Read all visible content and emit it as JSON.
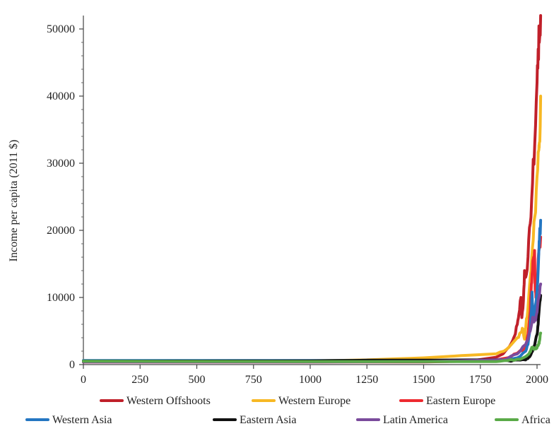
{
  "chart_data": {
    "type": "line",
    "title": "",
    "xlabel": "",
    "ylabel": "Income per capita (2011 $)",
    "xlim": [
      0,
      2000
    ],
    "ylim": [
      0,
      52000
    ],
    "x_ticks": [
      "0",
      "250",
      "500",
      "750",
      "1000",
      "1250",
      "1500",
      "1750",
      "2000"
    ],
    "y_ticks": [
      "0",
      "10000",
      "20000",
      "30000",
      "40000",
      "50000"
    ],
    "grid": false,
    "legend_position": "bottom",
    "series": [
      {
        "name": "Western Offshoots",
        "color": "#c0202a",
        "points": [
          [
            0,
            400
          ],
          [
            1000,
            400
          ],
          [
            1500,
            400
          ],
          [
            1700,
            500
          ],
          [
            1820,
            1100
          ],
          [
            1850,
            1600
          ],
          [
            1870,
            2400
          ],
          [
            1890,
            3400
          ],
          [
            1900,
            4200
          ],
          [
            1913,
            6000
          ],
          [
            1920,
            7500
          ],
          [
            1929,
            10000
          ],
          [
            1933,
            7000
          ],
          [
            1940,
            9500
          ],
          [
            1945,
            14000
          ],
          [
            1950,
            13000
          ],
          [
            1960,
            16000
          ],
          [
            1970,
            21000
          ],
          [
            1980,
            27000
          ],
          [
            1990,
            33000
          ],
          [
            2000,
            42000
          ],
          [
            2005,
            47000
          ],
          [
            2010,
            48000
          ],
          [
            2016,
            52000
          ]
        ]
      },
      {
        "name": "Western Europe",
        "color": "#f7b824",
        "points": [
          [
            0,
            600
          ],
          [
            500,
            550
          ],
          [
            1000,
            550
          ],
          [
            1250,
            700
          ],
          [
            1500,
            1000
          ],
          [
            1600,
            1200
          ],
          [
            1700,
            1400
          ],
          [
            1820,
            1600
          ],
          [
            1870,
            2400
          ],
          [
            1913,
            4000
          ],
          [
            1929,
            4800
          ],
          [
            1938,
            5300
          ],
          [
            1945,
            3800
          ],
          [
            1950,
            5400
          ],
          [
            1960,
            8500
          ],
          [
            1970,
            13000
          ],
          [
            1980,
            17500
          ],
          [
            1990,
            22000
          ],
          [
            2000,
            28000
          ],
          [
            2008,
            32000
          ],
          [
            2010,
            33000
          ],
          [
            2016,
            40000
          ]
        ]
      },
      {
        "name": "Eastern Europe",
        "color": "#ee2a30",
        "points": [
          [
            0,
            400
          ],
          [
            1000,
            400
          ],
          [
            1500,
            500
          ],
          [
            1700,
            600
          ],
          [
            1820,
            700
          ],
          [
            1870,
            1000
          ],
          [
            1913,
            1700
          ],
          [
            1950,
            2500
          ],
          [
            1960,
            4500
          ],
          [
            1970,
            8000
          ],
          [
            1975,
            12000
          ],
          [
            1980,
            14000
          ],
          [
            1985,
            16000
          ],
          [
            1989,
            17000
          ],
          [
            1992,
            11000
          ],
          [
            1995,
            10000
          ],
          [
            2000,
            12000
          ],
          [
            2008,
            17000
          ],
          [
            2016,
            19000
          ]
        ]
      },
      {
        "name": "Western Asia",
        "color": "#2476c2",
        "points": [
          [
            0,
            600
          ],
          [
            1000,
            600
          ],
          [
            1500,
            600
          ],
          [
            1820,
            700
          ],
          [
            1913,
            1000
          ],
          [
            1950,
            2000
          ],
          [
            1960,
            3000
          ],
          [
            1970,
            5500
          ],
          [
            1975,
            8000
          ],
          [
            1978,
            10800
          ],
          [
            1982,
            8000
          ],
          [
            1986,
            7000
          ],
          [
            1990,
            8000
          ],
          [
            2000,
            11000
          ],
          [
            2008,
            17000
          ],
          [
            2010,
            18000
          ],
          [
            2016,
            21500
          ]
        ]
      },
      {
        "name": "Eastern Asia",
        "color": "#111111",
        "points": [
          [
            0,
            500
          ],
          [
            1000,
            550
          ],
          [
            1250,
            650
          ],
          [
            1500,
            650
          ],
          [
            1700,
            700
          ],
          [
            1820,
            700
          ],
          [
            1870,
            600
          ],
          [
            1913,
            700
          ],
          [
            1950,
            700
          ],
          [
            1960,
            900
          ],
          [
            1970,
            1300
          ],
          [
            1980,
            2000
          ],
          [
            1990,
            3000
          ],
          [
            2000,
            4500
          ],
          [
            2005,
            6000
          ],
          [
            2010,
            8500
          ],
          [
            2016,
            10300
          ]
        ]
      },
      {
        "name": "Latin America",
        "color": "#7a4b9c",
        "points": [
          [
            0,
            400
          ],
          [
            1000,
            400
          ],
          [
            1500,
            450
          ],
          [
            1700,
            600
          ],
          [
            1820,
            700
          ],
          [
            1870,
            900
          ],
          [
            1913,
            1600
          ],
          [
            1950,
            3000
          ],
          [
            1960,
            3800
          ],
          [
            1970,
            5000
          ],
          [
            1980,
            7000
          ],
          [
            1985,
            6500
          ],
          [
            1990,
            6600
          ],
          [
            2000,
            7800
          ],
          [
            2008,
            10000
          ],
          [
            2016,
            12000
          ]
        ]
      },
      {
        "name": "Africa",
        "color": "#5aaa48",
        "points": [
          [
            0,
            500
          ],
          [
            1000,
            450
          ],
          [
            1500,
            450
          ],
          [
            1820,
            450
          ],
          [
            1870,
            600
          ],
          [
            1913,
            800
          ],
          [
            1950,
            1200
          ],
          [
            1960,
            1500
          ],
          [
            1970,
            2000
          ],
          [
            1975,
            2300
          ],
          [
            1980,
            2600
          ],
          [
            1990,
            2300
          ],
          [
            2000,
            2500
          ],
          [
            2008,
            3200
          ],
          [
            2010,
            3400
          ],
          [
            2016,
            4700
          ]
        ]
      }
    ]
  }
}
